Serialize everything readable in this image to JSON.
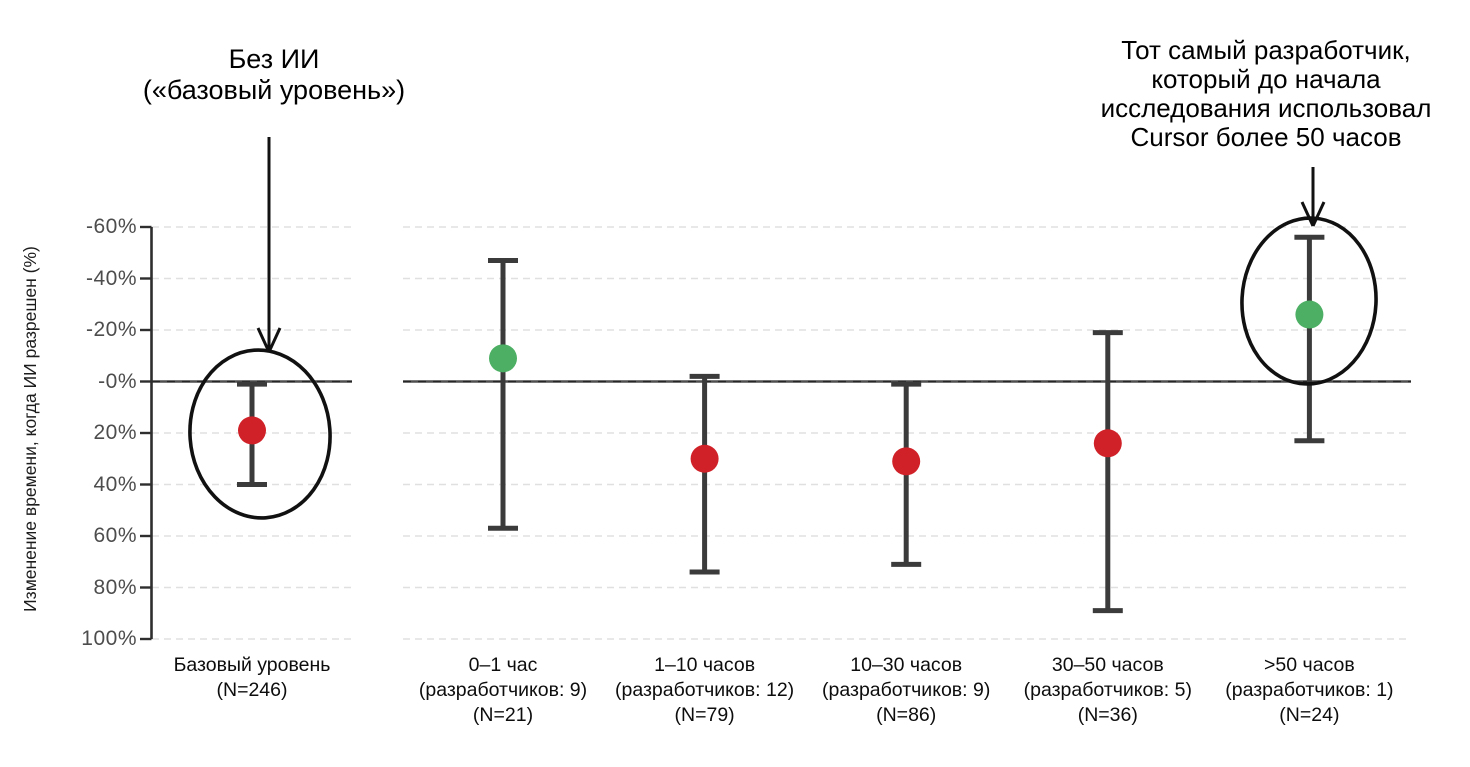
{
  "annotations": {
    "left": {
      "lines": [
        "Без ИИ",
        "(«базовый уровень»)"
      ]
    },
    "right": {
      "lines": [
        "Тот самый разработчик,",
        "который до начала",
        "исследования использовал",
        "Cursor более 50 часов"
      ]
    }
  },
  "chart_data": {
    "type": "scatter",
    "title": "",
    "xlabel": "",
    "ylabel": "Изменение времени, когда ИИ разрешен (%)",
    "y_axis": {
      "inverted": true,
      "ylim": [
        -60,
        100
      ],
      "ticks": [
        -60,
        -40,
        -20,
        0,
        20,
        40,
        60,
        80,
        100
      ],
      "tick_labels": [
        "-60%",
        "-40%",
        "-20%",
        "-0%",
        "20%",
        "40%",
        "60%",
        "80%",
        "100%"
      ],
      "grid": "dashed horizontal"
    },
    "legend": "none",
    "points": [
      {
        "label_lines": [
          "Базовый уровень",
          "(N=246)"
        ],
        "value": 19,
        "ci_low": 1,
        "ci_high": 40,
        "color": "red",
        "panel": "baseline",
        "circled": true
      },
      {
        "label_lines": [
          "0–1 час",
          "(разработчиков: 9)",
          "(N=21)"
        ],
        "value": -9,
        "ci_low": -47,
        "ci_high": 57,
        "color": "green",
        "panel": "main",
        "circled": false
      },
      {
        "label_lines": [
          "1–10 часов",
          "(разработчиков: 12)",
          "(N=79)"
        ],
        "value": 30,
        "ci_low": -2,
        "ci_high": 74,
        "color": "red",
        "panel": "main",
        "circled": false
      },
      {
        "label_lines": [
          "10–30 часов",
          "(разработчиков: 9)",
          "(N=86)"
        ],
        "value": 31,
        "ci_low": 1,
        "ci_high": 71,
        "color": "red",
        "panel": "main",
        "circled": false
      },
      {
        "label_lines": [
          "30–50 часов",
          "(разработчиков: 5)",
          "(N=36)"
        ],
        "value": 24,
        "ci_low": -19,
        "ci_high": 89,
        "color": "red",
        "panel": "main",
        "circled": false
      },
      {
        "label_lines": [
          ">50 часов",
          "(разработчиков: 1)",
          "(N=24)"
        ],
        "value": -26,
        "ci_low": -56,
        "ci_high": 23,
        "color": "green",
        "panel": "main",
        "circled": true
      }
    ],
    "colors": {
      "red": "#d02128",
      "green": "#4caf63",
      "errorbar": "#3b3b3b",
      "zero_line": "#4f4f4f",
      "grid": "#e0e0e0",
      "axis": "#2e2e2e",
      "annotation_ink": "#111111",
      "background": "#ffffff"
    }
  }
}
